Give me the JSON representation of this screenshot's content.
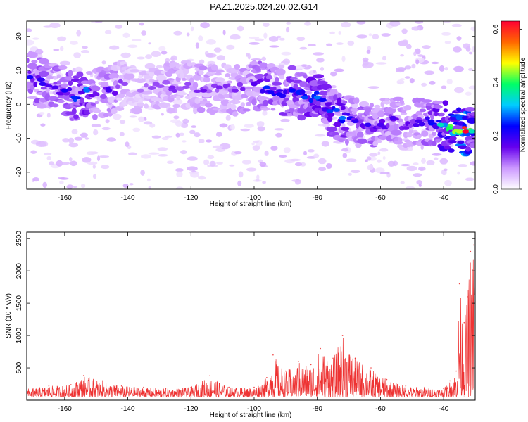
{
  "figure": {
    "title": "PAZ1.2025.024.20.02.G14"
  },
  "chart_data": [
    {
      "type": "heatmap",
      "xlabel": "Height of straight line (km)",
      "ylabel": "Frequency (Hz)",
      "xlim": [
        -172,
        -30
      ],
      "ylim": [
        -25,
        24.5
      ],
      "x_ticks": [
        -160,
        -140,
        -120,
        -100,
        -80,
        -60,
        -40
      ],
      "y_ticks": [
        -20,
        -10,
        0,
        10,
        20
      ],
      "colorbar": {
        "label": "Normalized spectral amplitude",
        "range": [
          0.0,
          0.63
        ],
        "ticks": [
          0.0,
          0.2,
          0.4,
          0.6
        ],
        "tick_labels": [
          "0.0",
          "0.2",
          "0.4",
          "0.6"
        ],
        "colormap": [
          "#ffffff",
          "#cc99ff",
          "#6600ee",
          "#0000ff",
          "#00ccff",
          "#00ff66",
          "#ffff00",
          "#ff6600",
          "#ff0033"
        ]
      },
      "ridge_points": [
        {
          "x": -171,
          "y": 8.0,
          "v": 0.22
        },
        {
          "x": -167,
          "y": 6.0,
          "v": 0.2
        },
        {
          "x": -163,
          "y": 5.0,
          "v": 0.18
        },
        {
          "x": -160,
          "y": 4.0,
          "v": 0.22
        },
        {
          "x": -157,
          "y": 2.0,
          "v": 0.25
        },
        {
          "x": -153,
          "y": 4.0,
          "v": 0.28
        },
        {
          "x": -150,
          "y": 3.0,
          "v": 0.15
        },
        {
          "x": -146,
          "y": 4.0,
          "v": 0.18
        },
        {
          "x": -141,
          "y": 6.0,
          "v": 0.12
        },
        {
          "x": -136,
          "y": 4.0,
          "v": 0.1
        },
        {
          "x": -131,
          "y": 6.0,
          "v": 0.12
        },
        {
          "x": -126,
          "y": 5.0,
          "v": 0.14
        },
        {
          "x": -121,
          "y": 6.0,
          "v": 0.12
        },
        {
          "x": -116,
          "y": 4.0,
          "v": 0.15
        },
        {
          "x": -111,
          "y": 5.0,
          "v": 0.14
        },
        {
          "x": -106,
          "y": 4.0,
          "v": 0.14
        },
        {
          "x": -100,
          "y": 6.0,
          "v": 0.17
        },
        {
          "x": -96,
          "y": 5.0,
          "v": 0.25
        },
        {
          "x": -92,
          "y": 3.0,
          "v": 0.22
        },
        {
          "x": -88,
          "y": 4.0,
          "v": 0.24
        },
        {
          "x": -84,
          "y": 2.0,
          "v": 0.26
        },
        {
          "x": -80,
          "y": 2.0,
          "v": 0.28
        },
        {
          "x": -76,
          "y": -2.0,
          "v": 0.26
        },
        {
          "x": -72,
          "y": -4.0,
          "v": 0.28
        },
        {
          "x": -68,
          "y": -5.0,
          "v": 0.2
        },
        {
          "x": -64,
          "y": -6.0,
          "v": 0.2
        },
        {
          "x": -60,
          "y": -6.0,
          "v": 0.18
        },
        {
          "x": -56,
          "y": -4.0,
          "v": 0.18
        },
        {
          "x": -52,
          "y": -7.0,
          "v": 0.15
        },
        {
          "x": -48,
          "y": -5.0,
          "v": 0.18
        },
        {
          "x": -44,
          "y": -5.0,
          "v": 0.22
        },
        {
          "x": -41,
          "y": -6.0,
          "v": 0.35
        },
        {
          "x": -38,
          "y": -7.0,
          "v": 0.4
        },
        {
          "x": -35,
          "y": -8.0,
          "v": 0.45
        },
        {
          "x": -33,
          "y": -8.0,
          "v": 0.63
        },
        {
          "x": -31,
          "y": -8.0,
          "v": 0.35
        }
      ]
    },
    {
      "type": "line",
      "xlabel": "Height of straight line (km)",
      "ylabel": "SNR (10 * v/v)",
      "xlim": [
        -172,
        -30
      ],
      "ylim": [
        0,
        2600
      ],
      "x_ticks": [
        -160,
        -140,
        -120,
        -100,
        -80,
        -60,
        -40
      ],
      "y_ticks": [
        500,
        1000,
        1500,
        2000,
        2500
      ],
      "series_color": "#ee3333",
      "envelope": [
        {
          "x": -172,
          "y": 180
        },
        {
          "x": -165,
          "y": 220
        },
        {
          "x": -158,
          "y": 240
        },
        {
          "x": -154,
          "y": 380
        },
        {
          "x": -148,
          "y": 300
        },
        {
          "x": -142,
          "y": 220
        },
        {
          "x": -135,
          "y": 200
        },
        {
          "x": -128,
          "y": 180
        },
        {
          "x": -120,
          "y": 200
        },
        {
          "x": -114,
          "y": 380
        },
        {
          "x": -108,
          "y": 200
        },
        {
          "x": -100,
          "y": 200
        },
        {
          "x": -96,
          "y": 350
        },
        {
          "x": -94,
          "y": 700
        },
        {
          "x": -90,
          "y": 450
        },
        {
          "x": -86,
          "y": 600
        },
        {
          "x": -82,
          "y": 550
        },
        {
          "x": -79,
          "y": 800
        },
        {
          "x": -75,
          "y": 650
        },
        {
          "x": -72,
          "y": 1000
        },
        {
          "x": -68,
          "y": 650
        },
        {
          "x": -63,
          "y": 500
        },
        {
          "x": -58,
          "y": 320
        },
        {
          "x": -52,
          "y": 220
        },
        {
          "x": -46,
          "y": 200
        },
        {
          "x": -40,
          "y": 180
        },
        {
          "x": -38,
          "y": 300
        },
        {
          "x": -36,
          "y": 450
        },
        {
          "x": -35,
          "y": 1800
        },
        {
          "x": -33.5,
          "y": 1200
        },
        {
          "x": -32.5,
          "y": 1600
        },
        {
          "x": -31.5,
          "y": 2300
        },
        {
          "x": -30.5,
          "y": 2400
        }
      ]
    }
  ]
}
